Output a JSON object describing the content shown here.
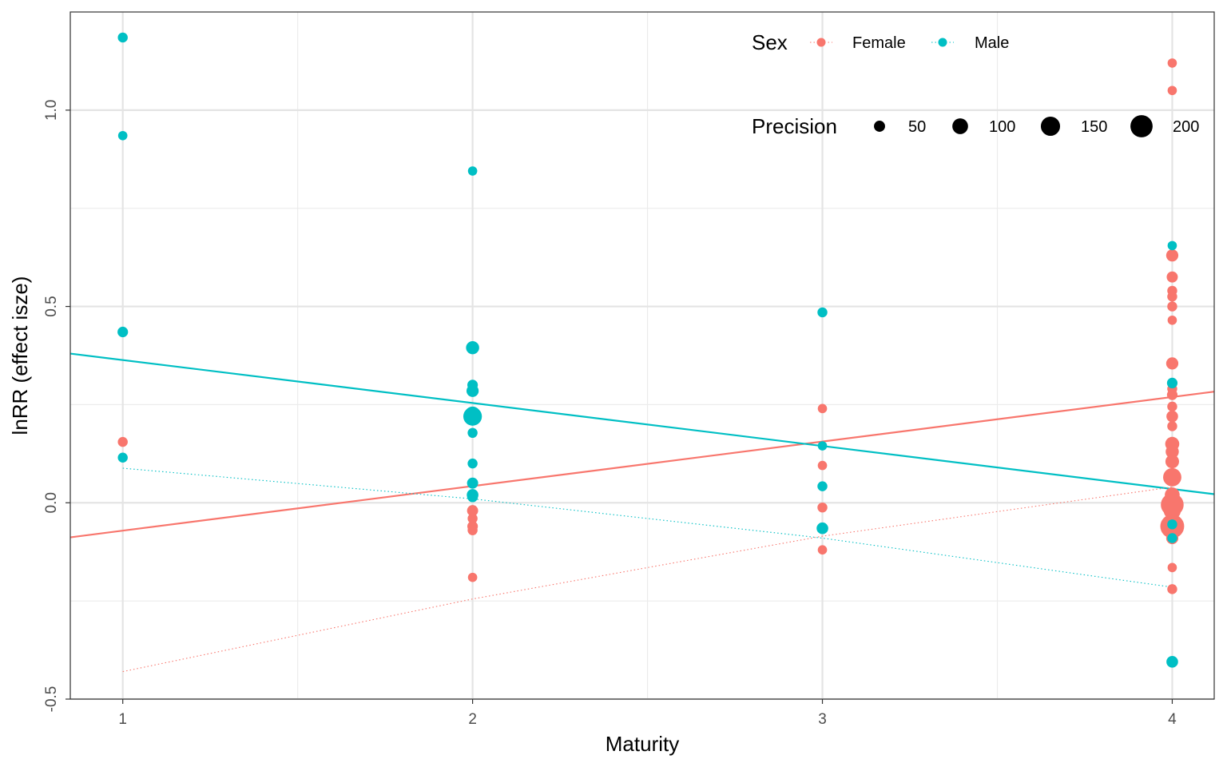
{
  "chart_data": {
    "type": "scatter",
    "xlabel": "Maturity",
    "ylabel": "lnRR (effect isze)",
    "xlim": [
      0.85,
      4.12
    ],
    "ylim": [
      -0.5,
      1.25
    ],
    "x_ticks": [
      1,
      2,
      3,
      4
    ],
    "y_ticks": [
      -0.5,
      0.0,
      0.5,
      1.0
    ],
    "y_tick_labels": [
      "-0.5",
      "0.0",
      "0.5",
      "1.0"
    ],
    "grid": true,
    "legend_placement": "top-right",
    "legend": {
      "color_title": "Sex",
      "size_title": "Precision",
      "size_levels": [
        {
          "label": "50",
          "value": 50
        },
        {
          "label": "100",
          "value": 100
        },
        {
          "label": "150",
          "value": 150
        },
        {
          "label": "200",
          "value": 200
        }
      ]
    },
    "series": [
      {
        "name": "Female",
        "color": "#F8766D",
        "points": [
          {
            "x": 1,
            "y": 0.155,
            "p": 40
          },
          {
            "x": 2,
            "y": -0.02,
            "p": 50
          },
          {
            "x": 2,
            "y": -0.04,
            "p": 40
          },
          {
            "x": 2,
            "y": -0.06,
            "p": 45
          },
          {
            "x": 2,
            "y": -0.07,
            "p": 40
          },
          {
            "x": 2,
            "y": -0.19,
            "p": 35
          },
          {
            "x": 3,
            "y": 0.24,
            "p": 35
          },
          {
            "x": 3,
            "y": 0.095,
            "p": 35
          },
          {
            "x": 3,
            "y": -0.012,
            "p": 40
          },
          {
            "x": 3,
            "y": -0.12,
            "p": 35
          },
          {
            "x": 4,
            "y": 1.12,
            "p": 35
          },
          {
            "x": 4,
            "y": 1.05,
            "p": 35
          },
          {
            "x": 4,
            "y": 0.63,
            "p": 60
          },
          {
            "x": 4,
            "y": 0.575,
            "p": 50
          },
          {
            "x": 4,
            "y": 0.54,
            "p": 40
          },
          {
            "x": 4,
            "y": 0.525,
            "p": 40
          },
          {
            "x": 4,
            "y": 0.5,
            "p": 40
          },
          {
            "x": 4,
            "y": 0.465,
            "p": 35
          },
          {
            "x": 4,
            "y": 0.355,
            "p": 60
          },
          {
            "x": 4,
            "y": 0.29,
            "p": 40
          },
          {
            "x": 4,
            "y": 0.275,
            "p": 45
          },
          {
            "x": 4,
            "y": 0.245,
            "p": 40
          },
          {
            "x": 4,
            "y": 0.22,
            "p": 55
          },
          {
            "x": 4,
            "y": 0.195,
            "p": 40
          },
          {
            "x": 4,
            "y": 0.15,
            "p": 80
          },
          {
            "x": 4,
            "y": 0.13,
            "p": 70
          },
          {
            "x": 4,
            "y": 0.105,
            "p": 75
          },
          {
            "x": 4,
            "y": 0.065,
            "p": 135
          },
          {
            "x": 4,
            "y": 0.02,
            "p": 90
          },
          {
            "x": 4,
            "y": -0.005,
            "p": 210
          },
          {
            "x": 4,
            "y": -0.02,
            "p": 120
          },
          {
            "x": 4,
            "y": -0.06,
            "p": 230
          },
          {
            "x": 4,
            "y": -0.09,
            "p": 60
          },
          {
            "x": 4,
            "y": -0.165,
            "p": 35
          },
          {
            "x": 4,
            "y": -0.22,
            "p": 40
          }
        ],
        "fit_line": {
          "x": [
            0.85,
            4.12
          ],
          "y": [
            -0.088,
            0.283
          ]
        },
        "trend_line": {
          "x": [
            1,
            2,
            3,
            4
          ],
          "y": [
            -0.43,
            -0.245,
            -0.085,
            0.04
          ]
        }
      },
      {
        "name": "Male",
        "color": "#00BFC4",
        "points": [
          {
            "x": 1,
            "y": 1.185,
            "p": 40
          },
          {
            "x": 1,
            "y": 0.935,
            "p": 35
          },
          {
            "x": 1,
            "y": 0.435,
            "p": 45
          },
          {
            "x": 1,
            "y": 0.115,
            "p": 40
          },
          {
            "x": 2,
            "y": 0.845,
            "p": 35
          },
          {
            "x": 2,
            "y": 0.395,
            "p": 70
          },
          {
            "x": 2,
            "y": 0.3,
            "p": 45
          },
          {
            "x": 2,
            "y": 0.285,
            "p": 60
          },
          {
            "x": 2,
            "y": 0.225,
            "p": 100
          },
          {
            "x": 2,
            "y": 0.22,
            "p": 140
          },
          {
            "x": 2,
            "y": 0.178,
            "p": 40
          },
          {
            "x": 2,
            "y": 0.1,
            "p": 40
          },
          {
            "x": 2,
            "y": 0.05,
            "p": 50
          },
          {
            "x": 2,
            "y": 0.02,
            "p": 55
          },
          {
            "x": 2,
            "y": 0.015,
            "p": 45
          },
          {
            "x": 3,
            "y": 0.485,
            "p": 40
          },
          {
            "x": 3,
            "y": 0.145,
            "p": 35
          },
          {
            "x": 3,
            "y": 0.042,
            "p": 40
          },
          {
            "x": 3,
            "y": -0.065,
            "p": 55
          },
          {
            "x": 4,
            "y": 0.655,
            "p": 35
          },
          {
            "x": 4,
            "y": 0.305,
            "p": 45
          },
          {
            "x": 4,
            "y": -0.055,
            "p": 40
          },
          {
            "x": 4,
            "y": -0.09,
            "p": 40
          },
          {
            "x": 4,
            "y": -0.405,
            "p": 55
          }
        ],
        "fit_line": {
          "x": [
            0.85,
            4.12
          ],
          "y": [
            0.38,
            0.022
          ]
        },
        "trend_line": {
          "x": [
            1,
            2,
            3,
            4
          ],
          "y": [
            0.088,
            0.01,
            -0.09,
            -0.215
          ]
        }
      }
    ]
  }
}
